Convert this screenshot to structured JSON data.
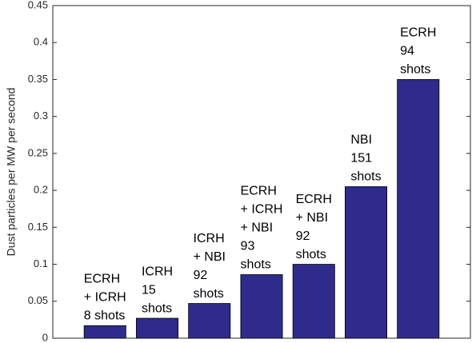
{
  "chart_data": {
    "type": "bar",
    "ylabel": "Dust particles per MW per second",
    "categories": [
      [
        "ECRH",
        "+ ICRH",
        "8 shots"
      ],
      [
        "ICRH",
        "15",
        "shots"
      ],
      [
        "ICRH",
        "+ NBI",
        "92",
        "shots"
      ],
      [
        "ECRH",
        "+ ICRH",
        "+ NBI",
        "93",
        "shots"
      ],
      [
        "ECRH",
        "+ NBI",
        "92",
        "shots"
      ],
      [
        "NBI",
        "151",
        "shots"
      ],
      [
        "ECRH",
        "94",
        "shots"
      ]
    ],
    "values": [
      0.017,
      0.027,
      0.047,
      0.086,
      0.1,
      0.205,
      0.35
    ],
    "color": "#2e2b8c",
    "ylim": [
      0,
      0.45
    ],
    "yticks": [
      0,
      0.05,
      0.1,
      0.15,
      0.2,
      0.25,
      0.3,
      0.35,
      0.4,
      0.45
    ]
  }
}
